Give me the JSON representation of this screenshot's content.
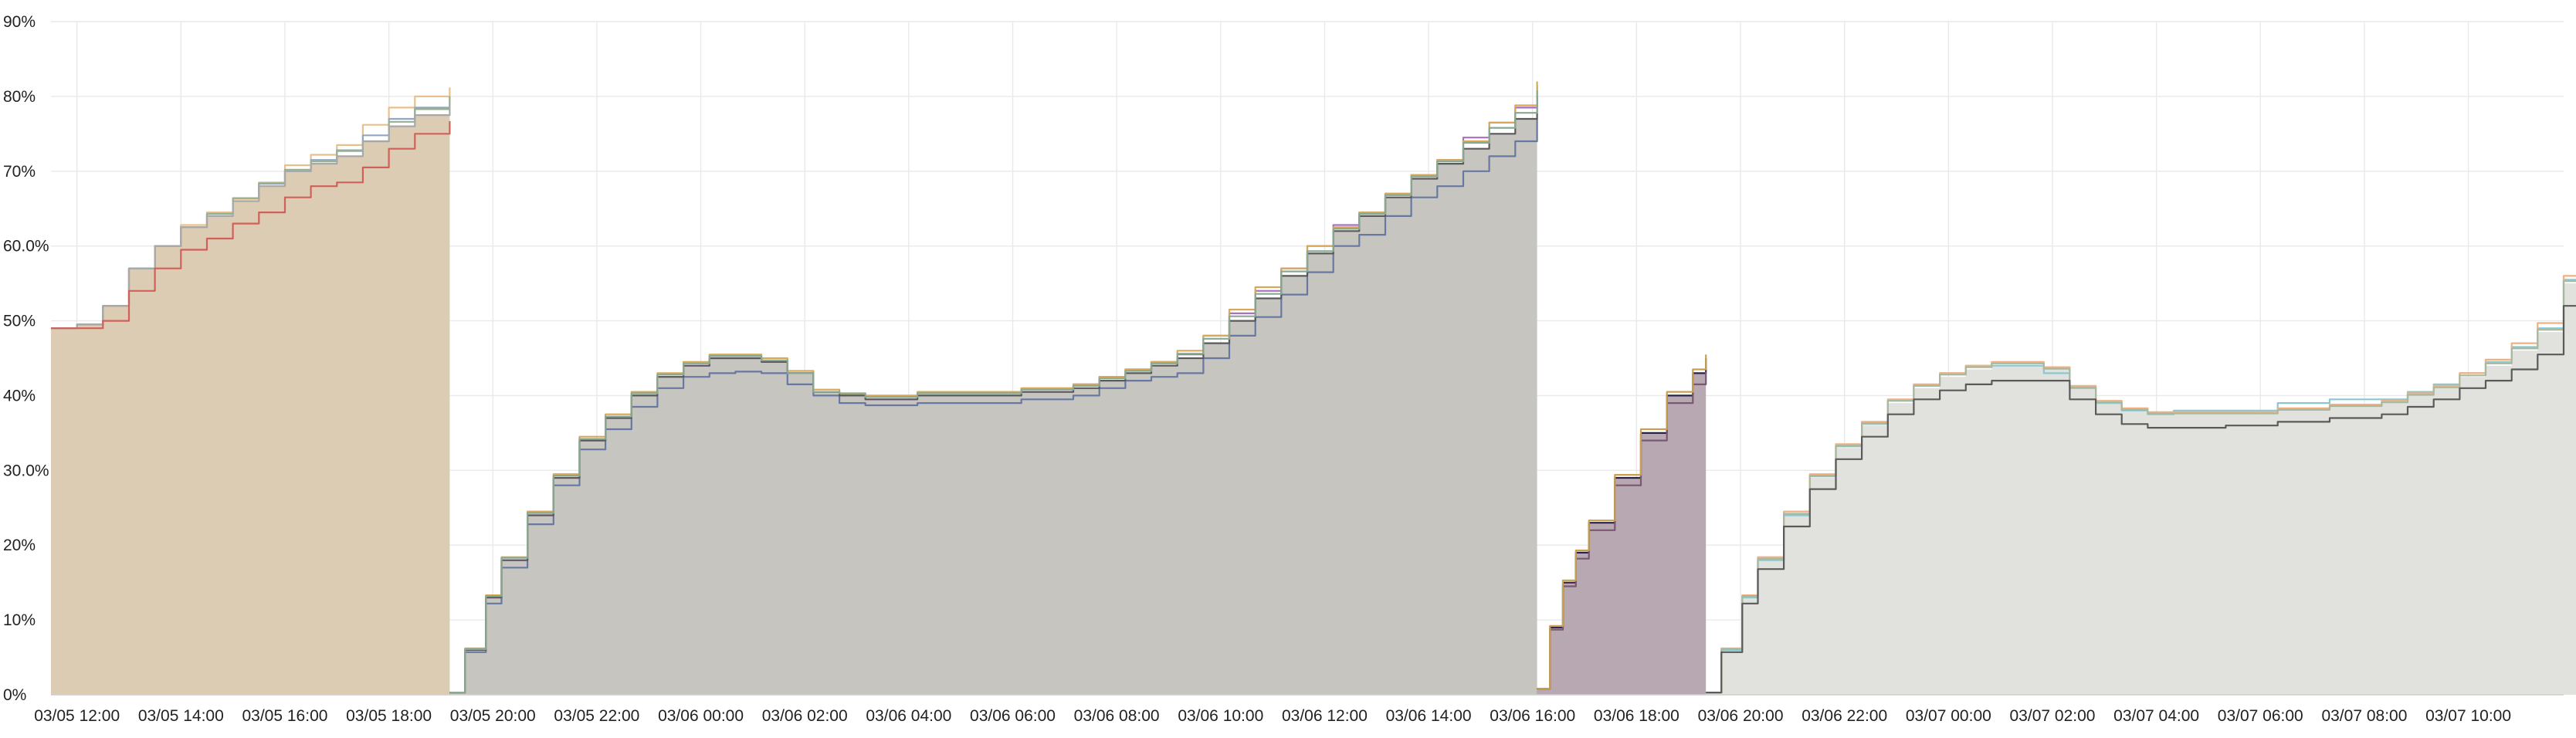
{
  "chart_data": {
    "type": "area",
    "title": "",
    "xlabel": "",
    "ylabel": "",
    "ylim": [
      0,
      90
    ],
    "grid": true,
    "legend": "none",
    "y_ticks": [
      {
        "value": 0,
        "label": "0%"
      },
      {
        "value": 10,
        "label": "10%"
      },
      {
        "value": 20,
        "label": "20%"
      },
      {
        "value": 30,
        "label": "30.0%"
      },
      {
        "value": 40,
        "label": "40%"
      },
      {
        "value": 50,
        "label": "50%"
      },
      {
        "value": 60,
        "label": "60.0%"
      },
      {
        "value": 70,
        "label": "70%"
      },
      {
        "value": 80,
        "label": "80%"
      },
      {
        "value": 90,
        "label": "90%"
      }
    ],
    "x_range": [
      "03/05 11:30",
      "03/07 11:50"
    ],
    "x_ticks": [
      "03/05 12:00",
      "03/05 14:00",
      "03/05 16:00",
      "03/05 18:00",
      "03/05 20:00",
      "03/05 22:00",
      "03/06 00:00",
      "03/06 02:00",
      "03/06 04:00",
      "03/06 06:00",
      "03/06 08:00",
      "03/06 10:00",
      "03/06 12:00",
      "03/06 14:00",
      "03/06 16:00",
      "03/06 18:00",
      "03/06 20:00",
      "03/06 22:00",
      "03/07 00:00",
      "03/07 02:00",
      "03/07 04:00",
      "03/07 06:00",
      "03/07 08:00",
      "03/07 10:00"
    ],
    "segments": [
      {
        "start": "03/05 11:30",
        "end": "03/05 19:10",
        "fill": "#dcccb4",
        "points": [
          [
            0,
            49
          ],
          [
            0.5,
            49.5
          ],
          [
            1,
            52
          ],
          [
            1.5,
            57
          ],
          [
            2,
            60
          ],
          [
            2.5,
            62.5
          ],
          [
            3,
            64
          ],
          [
            3.5,
            66
          ],
          [
            4,
            68
          ],
          [
            4.5,
            70
          ],
          [
            5,
            71
          ],
          [
            5.5,
            72
          ],
          [
            6,
            74
          ],
          [
            6.5,
            76
          ],
          [
            7,
            77.5
          ],
          [
            7.67,
            79
          ]
        ],
        "series": [
          {
            "color": "#e8c08c",
            "offsets": [
              0,
              0,
              0,
              0,
              0,
              0.3,
              0.5,
              0.3,
              0.5,
              0.8,
              1.2,
              1.5,
              2.2,
              2.5,
              2.5,
              2.2
            ]
          },
          {
            "color": "#90a8c0",
            "offsets": [
              0,
              0,
              0,
              0,
              0,
              0,
              0.3,
              0.4,
              0.3,
              0,
              0.5,
              0.8,
              0.8,
              1,
              1,
              1
            ]
          },
          {
            "color": "#98b090",
            "offsets": [
              0,
              0,
              0,
              0,
              0,
              0,
              0.3,
              0.4,
              0.4,
              0.2,
              0.3,
              0.7,
              0,
              0.6,
              0.8,
              1
            ]
          },
          {
            "color": "#a8a8a8",
            "offsets": [
              0,
              0,
              0,
              0,
              0,
              0,
              0,
              0,
              0,
              0,
              0,
              0,
              0,
              0,
              0,
              0
            ]
          },
          {
            "color": "#d06058",
            "offsets": [
              0,
              -0.5,
              -2,
              -3,
              -3,
              -3,
              -3,
              -3,
              -3.5,
              -3.5,
              -3,
              -3.5,
              -3.5,
              -3,
              -2.5,
              -2.3
            ]
          }
        ]
      },
      {
        "start": "03/05 19:10",
        "end": "03/06 16:05",
        "fill": "#c6c5c0",
        "points": [
          [
            0,
            0.3
          ],
          [
            0.3,
            6
          ],
          [
            0.7,
            13
          ],
          [
            1,
            18
          ],
          [
            1.5,
            24
          ],
          [
            2,
            29
          ],
          [
            2.5,
            34
          ],
          [
            3,
            37
          ],
          [
            3.5,
            40
          ],
          [
            4,
            42.5
          ],
          [
            4.5,
            44
          ],
          [
            5,
            45
          ],
          [
            5.5,
            45
          ],
          [
            6,
            44.5
          ],
          [
            6.5,
            43
          ],
          [
            7,
            40.5
          ],
          [
            7.5,
            40
          ],
          [
            8,
            39.5
          ],
          [
            9,
            40
          ],
          [
            10,
            40
          ],
          [
            11,
            40.5
          ],
          [
            12,
            41
          ],
          [
            12.5,
            42
          ],
          [
            13,
            43
          ],
          [
            13.5,
            44
          ],
          [
            14,
            45
          ],
          [
            14.5,
            47
          ],
          [
            15,
            50
          ],
          [
            15.5,
            53
          ],
          [
            16,
            56
          ],
          [
            16.5,
            59
          ],
          [
            17,
            62
          ],
          [
            17.5,
            64
          ],
          [
            18,
            66.5
          ],
          [
            18.5,
            69
          ],
          [
            19,
            71
          ],
          [
            19.5,
            73
          ],
          [
            20,
            75
          ],
          [
            20.5,
            77
          ],
          [
            20.92,
            80
          ]
        ],
        "series": [
          {
            "color": "#6878a0",
            "offsets": [
              0,
              -0.3,
              -0.8,
              -1,
              -1.2,
              -1,
              -1.2,
              -1.5,
              -1.5,
              -1.5,
              -1.5,
              -2,
              -1.8,
              -1.5,
              -1.5,
              -0.5,
              -1,
              -0.8,
              -1,
              -1,
              -1,
              -1,
              -1,
              -1,
              -1.5,
              -2,
              -2,
              -2,
              -2.5,
              -2.5,
              -2.5,
              -2,
              -2.5,
              -2.5,
              -2.5,
              -3,
              -3,
              -3,
              -3,
              -3
            ]
          },
          {
            "color": "#a870c0",
            "offsets": [
              0,
              0,
              0,
              0,
              0,
              0,
              0,
              0,
              0,
              0,
              0,
              0,
              0,
              0,
              0,
              0,
              0,
              0,
              0,
              0,
              0,
              0.5,
              0.5,
              0.5,
              0.5,
              0.5,
              1,
              1,
              1,
              1,
              1,
              0.8,
              0.5,
              0.5,
              0.5,
              0.5,
              1.5,
              1.5,
              1.5,
              1.5
            ]
          },
          {
            "color": "#d8a858",
            "offsets": [
              0,
              0.2,
              0.3,
              0.4,
              0.5,
              0.5,
              0.5,
              0.5,
              0.5,
              0.5,
              0.5,
              0.5,
              0.5,
              0.5,
              0.3,
              0.3,
              0.2,
              0.5,
              0.5,
              0.5,
              0.5,
              0.5,
              0.5,
              0.5,
              0.5,
              1,
              1,
              1.5,
              1.5,
              1,
              1,
              0.5,
              0.5,
              0.5,
              0.5,
              0.5,
              1,
              1.5,
              1.8,
              2
            ]
          },
          {
            "color": "#5a5a5a",
            "offsets": [
              0,
              0,
              0,
              0,
              0,
              0,
              0,
              0,
              0,
              0,
              0,
              0,
              0,
              0,
              0,
              0,
              0,
              0,
              0,
              0,
              0,
              0,
              0,
              0,
              0,
              0,
              0,
              0,
              0,
              0,
              0,
              0,
              0,
              0,
              0,
              0,
              0,
              0,
              0,
              0
            ]
          },
          {
            "color": "#88a890",
            "offsets": [
              0,
              0.1,
              0.2,
              0.3,
              0.3,
              0.3,
              0.2,
              0.2,
              0.3,
              0.3,
              0.3,
              0.3,
              0.3,
              0.2,
              0,
              0,
              0.3,
              0.3,
              0.3,
              0.3,
              0.3,
              0.3,
              0.3,
              0.3,
              0.3,
              0.6,
              0.6,
              0.6,
              0.6,
              0.6,
              0.3,
              0.3,
              0.3,
              0.3,
              0.3,
              0.3,
              0.8,
              0.8,
              0.8,
              0.8
            ]
          }
        ]
      },
      {
        "start": "03/06 16:05",
        "end": "03/06 19:20",
        "fill": "#b7a8b2",
        "points": [
          [
            0,
            0.8
          ],
          [
            0.25,
            9
          ],
          [
            0.5,
            15
          ],
          [
            0.75,
            19
          ],
          [
            1,
            23
          ],
          [
            1.5,
            29
          ],
          [
            2,
            35
          ],
          [
            2.5,
            40
          ],
          [
            3,
            43
          ],
          [
            3.25,
            45
          ]
        ],
        "series": [
          {
            "color": "#2a2048",
            "offsets": [
              0,
              0,
              0,
              0,
              0,
              0,
              0,
              0,
              0,
              0
            ]
          },
          {
            "color": "#7a5870",
            "offsets": [
              0,
              -0.3,
              -0.5,
              -0.8,
              -1,
              -1,
              -1,
              -1,
              -1.5,
              -1.8
            ]
          },
          {
            "color": "#c8a050",
            "offsets": [
              0,
              0.2,
              0.3,
              0.3,
              0.3,
              0.4,
              0.5,
              0.5,
              0.5,
              0.5
            ]
          }
        ]
      },
      {
        "start": "03/06 19:20",
        "end": "03/07 11:50",
        "fill": "#e1e2dd",
        "points": [
          [
            0,
            0.3
          ],
          [
            0.3,
            6
          ],
          [
            0.7,
            13
          ],
          [
            1,
            18
          ],
          [
            1.5,
            24
          ],
          [
            2,
            29
          ],
          [
            2.5,
            33
          ],
          [
            3,
            36
          ],
          [
            3.5,
            39
          ],
          [
            4,
            41
          ],
          [
            4.5,
            42.5
          ],
          [
            5,
            43.5
          ],
          [
            5.5,
            44
          ],
          [
            6,
            44
          ],
          [
            6.5,
            43.5
          ],
          [
            7,
            41
          ],
          [
            7.5,
            39
          ],
          [
            8,
            38
          ],
          [
            8.5,
            37.5
          ],
          [
            9,
            37.5
          ],
          [
            10,
            37.5
          ],
          [
            11,
            38
          ],
          [
            12,
            38.5
          ],
          [
            13,
            39
          ],
          [
            13.5,
            40
          ],
          [
            14,
            41
          ],
          [
            14.5,
            42.5
          ],
          [
            15,
            44
          ],
          [
            15.5,
            46
          ],
          [
            16,
            48.5
          ],
          [
            16.5,
            55
          ],
          [
            16.83,
            61
          ]
        ],
        "series": [
          {
            "color": "#8ac8d0",
            "offsets": [
              0,
              0,
              0,
              0,
              0,
              0.2,
              0.2,
              0.2,
              0.3,
              0.3,
              0.5,
              0.5,
              0,
              0,
              -0.5,
              0,
              0,
              0,
              0,
              0.5,
              0.5,
              1,
              1,
              0.5,
              0.5,
              0.5,
              0.5,
              0.5,
              0.5,
              0.5,
              0.5,
              0.5
            ]
          },
          {
            "color": "#f0b080",
            "offsets": [
              0,
              0.2,
              0.3,
              0.4,
              0.5,
              0.5,
              0.5,
              0.5,
              0.5,
              0.5,
              0.5,
              0.5,
              0.5,
              0.5,
              0.3,
              0.3,
              0.3,
              0.3,
              0.3,
              0.3,
              0.3,
              0.3,
              0.3,
              0.3,
              0.3,
              0.3,
              0.5,
              0.8,
              1,
              1.2,
              1,
              1.5
            ]
          },
          {
            "color": "#a8b8a0",
            "offsets": [
              0,
              0.1,
              0.2,
              0.2,
              0.2,
              0.3,
              0.3,
              0.3,
              0.3,
              0.3,
              0.3,
              0.3,
              0.3,
              0.3,
              0.1,
              0.1,
              0.1,
              0.1,
              0.1,
              0.1,
              0.1,
              0.1,
              0.1,
              0.1,
              0.1,
              0.1,
              0.2,
              0.3,
              0.3,
              0.3,
              0.3,
              0.2
            ]
          },
          {
            "color": "#5a5a5a",
            "offsets": [
              0,
              -0.3,
              -0.8,
              -1.2,
              -1.5,
              -1.5,
              -1.5,
              -1.5,
              -1.5,
              -1.5,
              -1.8,
              -2,
              -2,
              -2,
              -1.5,
              -1.5,
              -1.5,
              -1.8,
              -1.8,
              -1.8,
              -1.5,
              -1.5,
              -1.5,
              -1.5,
              -1.5,
              -1.5,
              -1.5,
              -2,
              -2.5,
              -3,
              -3,
              -2
            ]
          }
        ]
      }
    ]
  }
}
